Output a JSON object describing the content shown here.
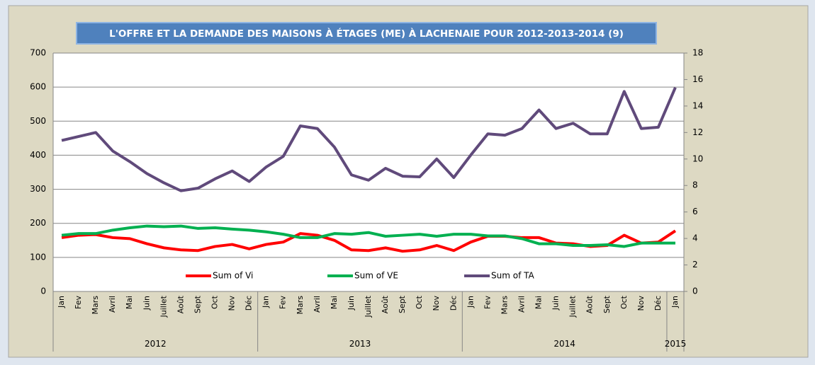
{
  "chart_data": {
    "type": "line",
    "title": "L'OFFRE ET LA DEMANDE DES MAISONS À ÉTAGES (ME) À LACHENAIE POUR 2012-2013-2014 (9)",
    "groups": [
      {
        "name": "2012",
        "categories": [
          "Jan",
          "Fev",
          "Mars",
          "Avril",
          "Mai",
          "Juin",
          "Juillet",
          "Août",
          "Sept",
          "Oct",
          "Nov",
          "Déc"
        ]
      },
      {
        "name": "2013",
        "categories": [
          "Jan",
          "Fev",
          "Mars",
          "Avril",
          "Mai",
          "Juin",
          "Juillet",
          "Août",
          "Sept",
          "Oct",
          "Nov",
          "Déc"
        ]
      },
      {
        "name": "2014",
        "categories": [
          "Jan",
          "Fev",
          "Mars",
          "Avril",
          "Mai",
          "Juin",
          "Juillet",
          "Août",
          "Sept",
          "Oct",
          "Nov",
          "Déc"
        ]
      },
      {
        "name": "2015",
        "categories": [
          "Jan"
        ]
      }
    ],
    "series": [
      {
        "name": "Sum of Vi",
        "color": "#ff0000",
        "values": [
          158,
          165,
          167,
          158,
          155,
          140,
          128,
          122,
          120,
          132,
          138,
          125,
          138,
          145,
          170,
          165,
          150,
          122,
          120,
          128,
          118,
          122,
          135,
          120,
          145,
          162,
          162,
          158,
          158,
          142,
          140,
          132,
          135,
          165,
          142,
          145,
          178
        ]
      },
      {
        "name": "Sum of VE",
        "color": "#00b050",
        "values": [
          165,
          170,
          170,
          180,
          187,
          192,
          190,
          192,
          185,
          187,
          183,
          180,
          175,
          168,
          158,
          158,
          170,
          168,
          173,
          162,
          165,
          168,
          162,
          168,
          168,
          163,
          163,
          155,
          140,
          140,
          135,
          135,
          137,
          132,
          142,
          142,
          142
        ]
      },
      {
        "name": "Sum of TA",
        "color": "#604a7b",
        "axis": "y2",
        "values": [
          11.4,
          11.7,
          12.0,
          10.6,
          9.8,
          8.9,
          8.2,
          7.6,
          7.8,
          8.5,
          9.1,
          8.3,
          9.4,
          10.2,
          12.5,
          12.3,
          10.9,
          8.8,
          8.4,
          9.3,
          8.7,
          8.65,
          10.0,
          8.6,
          10.3,
          11.9,
          11.8,
          12.3,
          13.7,
          12.3,
          12.7,
          11.9,
          11.9,
          15.1,
          12.3,
          12.4,
          15.4
        ]
      }
    ],
    "ylim": [
      0,
      700
    ],
    "yticks": [
      0,
      100,
      200,
      300,
      400,
      500,
      600,
      700
    ],
    "y2lim": [
      0,
      18
    ],
    "y2ticks": [
      0,
      2,
      4,
      6,
      8,
      10,
      12,
      14,
      16,
      18
    ],
    "grid": true
  }
}
